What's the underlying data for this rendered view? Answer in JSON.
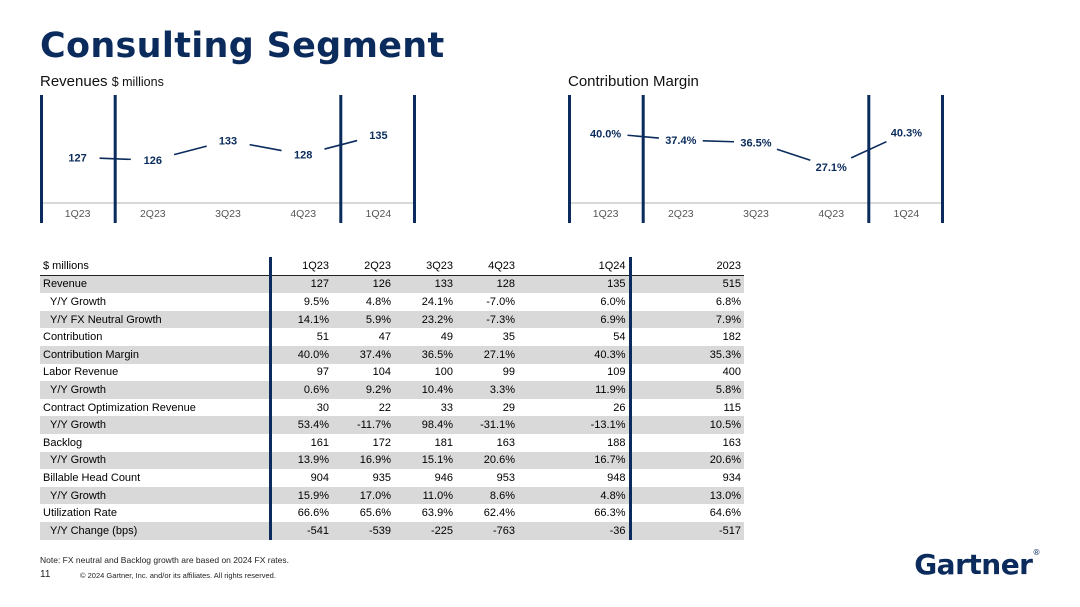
{
  "slide": {
    "title": "Consulting Segment",
    "note": "Note: FX neutral and Backlog growth are based on 2024 FX rates.",
    "page_number": "11",
    "copyright": "© 2024 Gartner, Inc. and/or its affiliates. All rights reserved.",
    "logo_text": "Gartner",
    "logo_mark": "®"
  },
  "charts": {
    "revenue": {
      "title": "Revenues",
      "unit": "$ millions"
    },
    "margin": {
      "title": "Contribution Margin"
    }
  },
  "chart_data": [
    {
      "type": "line",
      "title": "Revenues $ millions",
      "categories": [
        "1Q23",
        "2Q23",
        "3Q23",
        "4Q23",
        "1Q24"
      ],
      "values": [
        127,
        126,
        133,
        128,
        135
      ],
      "labels": [
        "127",
        "126",
        "133",
        "128",
        "135"
      ],
      "ylim": [
        115,
        145
      ],
      "highlighted": [
        "1Q23",
        "1Q24"
      ]
    },
    {
      "type": "line",
      "title": "Contribution Margin",
      "categories": [
        "1Q23",
        "2Q23",
        "3Q23",
        "4Q23",
        "1Q24"
      ],
      "values": [
        40.0,
        37.4,
        36.5,
        27.1,
        40.3
      ],
      "labels": [
        "40.0%",
        "37.4%",
        "36.5%",
        "27.1%",
        "40.3%"
      ],
      "ylim": [
        18,
        50
      ],
      "highlighted": [
        "1Q23",
        "1Q24"
      ]
    }
  ],
  "table": {
    "headers": [
      "$ millions",
      "1Q23",
      "2Q23",
      "3Q23",
      "4Q23",
      "",
      "1Q24",
      "2023"
    ],
    "rows": [
      {
        "label": "Revenue",
        "sub": false,
        "shade": true,
        "cells": [
          "127",
          "126",
          "133",
          "128",
          "135",
          "515"
        ]
      },
      {
        "label": "Y/Y Growth",
        "sub": true,
        "shade": false,
        "cells": [
          "9.5%",
          "4.8%",
          "24.1%",
          "-7.0%",
          "6.0%",
          "6.8%"
        ]
      },
      {
        "label": "Y/Y FX Neutral Growth",
        "sub": true,
        "shade": true,
        "cells": [
          "14.1%",
          "5.9%",
          "23.2%",
          "-7.3%",
          "6.9%",
          "7.9%"
        ]
      },
      {
        "label": "Contribution",
        "sub": false,
        "shade": false,
        "cells": [
          "51",
          "47",
          "49",
          "35",
          "54",
          "182"
        ]
      },
      {
        "label": "Contribution Margin",
        "sub": false,
        "shade": true,
        "cells": [
          "40.0%",
          "37.4%",
          "36.5%",
          "27.1%",
          "40.3%",
          "35.3%"
        ]
      },
      {
        "label": "Labor Revenue",
        "sub": false,
        "shade": false,
        "cells": [
          "97",
          "104",
          "100",
          "99",
          "109",
          "400"
        ]
      },
      {
        "label": "Y/Y Growth",
        "sub": true,
        "shade": true,
        "cells": [
          "0.6%",
          "9.2%",
          "10.4%",
          "3.3%",
          "11.9%",
          "5.8%"
        ]
      },
      {
        "label": "Contract Optimization Revenue",
        "sub": false,
        "shade": false,
        "cells": [
          "30",
          "22",
          "33",
          "29",
          "26",
          "115"
        ]
      },
      {
        "label": "Y/Y Growth",
        "sub": true,
        "shade": true,
        "cells": [
          "53.4%",
          "-11.7%",
          "98.4%",
          "-31.1%",
          "-13.1%",
          "10.5%"
        ]
      },
      {
        "label": "Backlog",
        "sub": false,
        "shade": false,
        "cells": [
          "161",
          "172",
          "181",
          "163",
          "188",
          "163"
        ]
      },
      {
        "label": "Y/Y Growth",
        "sub": true,
        "shade": true,
        "cells": [
          "13.9%",
          "16.9%",
          "15.1%",
          "20.6%",
          "16.7%",
          "20.6%"
        ]
      },
      {
        "label": "Billable Head Count",
        "sub": false,
        "shade": false,
        "cells": [
          "904",
          "935",
          "946",
          "953",
          "948",
          "934"
        ]
      },
      {
        "label": "Y/Y Growth",
        "sub": true,
        "shade": true,
        "cells": [
          "15.9%",
          "17.0%",
          "11.0%",
          "8.6%",
          "4.8%",
          "13.0%"
        ]
      },
      {
        "label": "Utilization Rate",
        "sub": false,
        "shade": false,
        "cells": [
          "66.6%",
          "65.6%",
          "63.9%",
          "62.4%",
          "66.3%",
          "64.6%"
        ]
      },
      {
        "label": "Y/Y Change (bps)",
        "sub": true,
        "shade": true,
        "cells": [
          "-541",
          "-539",
          "-225",
          "-763",
          "-36",
          "-517"
        ]
      }
    ]
  },
  "colors": {
    "navy": "#0a2b5c",
    "shade": "#d9d9d9",
    "tick_text": "#555555",
    "axis_line": "#b0b0b0"
  }
}
